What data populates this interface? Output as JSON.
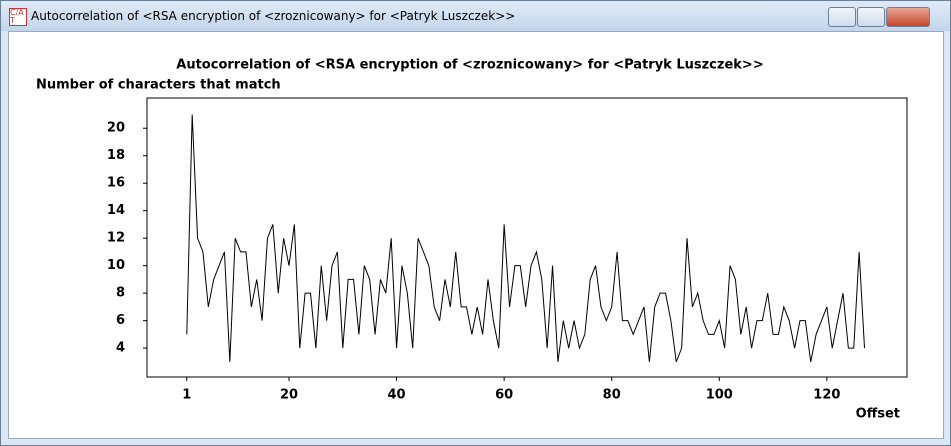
{
  "window": {
    "title": "Autocorrelation of <RSA encryption of <zroznicowany> for <Patryk Luszczek>>"
  },
  "chart_data": {
    "type": "line",
    "title": "Autocorrelation of <RSA encryption of <zroznicowany> for <Patryk Luszczek>>",
    "y_label": "Number of characters that match",
    "x_label": "Offset",
    "x": [
      1,
      2,
      3,
      4,
      5,
      6,
      7,
      8,
      9,
      10,
      11,
      12,
      13,
      14,
      15,
      16,
      17,
      18,
      19,
      20,
      21,
      22,
      23,
      24,
      25,
      26,
      27,
      28,
      29,
      30,
      31,
      32,
      33,
      34,
      35,
      36,
      37,
      38,
      39,
      40,
      41,
      42,
      43,
      44,
      45,
      46,
      47,
      48,
      49,
      50,
      51,
      52,
      53,
      54,
      55,
      56,
      57,
      58,
      59,
      60,
      61,
      62,
      63,
      64,
      65,
      66,
      67,
      68,
      69,
      70,
      71,
      72,
      73,
      74,
      75,
      76,
      77,
      78,
      79,
      80,
      81,
      82,
      83,
      84,
      85,
      86,
      87,
      88,
      89,
      90,
      91,
      92,
      93,
      94,
      95,
      96,
      97,
      98,
      99,
      100,
      101,
      102,
      103,
      104,
      105,
      106,
      107,
      108,
      109,
      110,
      111,
      112,
      113,
      114,
      115,
      116,
      117,
      118,
      119,
      120,
      121,
      122,
      123,
      124,
      125,
      126,
      127
    ],
    "values": [
      5,
      21,
      12,
      11,
      7,
      9,
      10,
      11,
      3,
      12,
      11,
      11,
      7,
      9,
      6,
      12,
      13,
      8,
      12,
      10,
      13,
      4,
      8,
      8,
      4,
      10,
      6,
      10,
      11,
      4,
      9,
      9,
      5,
      10,
      9,
      5,
      9,
      8,
      12,
      4,
      10,
      8,
      4,
      12,
      11,
      10,
      7,
      6,
      9,
      7,
      11,
      7,
      7,
      5,
      7,
      5,
      9,
      6,
      4,
      13,
      7,
      10,
      10,
      7,
      10,
      11,
      9,
      4,
      10,
      3,
      6,
      4,
      6,
      4,
      5,
      9,
      10,
      7,
      6,
      7,
      11,
      6,
      6,
      5,
      6,
      7,
      3,
      7,
      8,
      8,
      6,
      3,
      4,
      12,
      7,
      8,
      6,
      5,
      5,
      6,
      4,
      10,
      9,
      5,
      7,
      4,
      6,
      6,
      8,
      5,
      5,
      7,
      6,
      4,
      6,
      6,
      3,
      5,
      6,
      7,
      4,
      6,
      8,
      4,
      4,
      11,
      4
    ],
    "color": "#000000",
    "xlim": [
      -6.4,
      134.9
    ],
    "ylim": [
      1.9,
      22.2
    ],
    "xticks": [
      1,
      20,
      40,
      60,
      80,
      100,
      120
    ],
    "yticks": [
      4,
      6,
      8,
      10,
      12,
      14,
      16,
      18,
      20
    ]
  }
}
